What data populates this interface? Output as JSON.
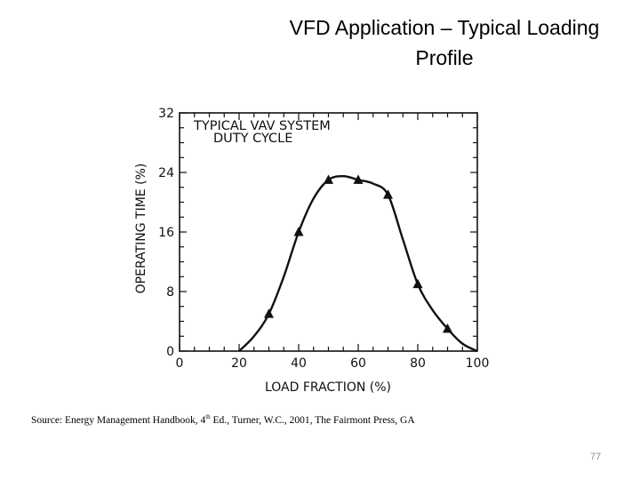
{
  "slide": {
    "title_line1": "VFD Application – Typical Loading",
    "title_line2": "Profile",
    "source_prefix": "Source:  Energy Management Handbook, 4",
    "source_sup": "th",
    "source_suffix": " Ed., Turner, W.C., 2001, The Fairmont  Press, GA",
    "page_number": "77"
  },
  "chart_data": {
    "type": "line",
    "title": "TYPICAL VAV SYSTEM",
    "subtitle": "DUTY CYCLE",
    "xlabel": "LOAD FRACTION (%)",
    "ylabel": "OPERATING TIME (%)",
    "xlim": [
      0,
      100
    ],
    "ylim": [
      0,
      32
    ],
    "xticks": [
      "0",
      "20",
      "40",
      "60",
      "80",
      "100"
    ],
    "yticks": [
      "0",
      "8",
      "16",
      "24",
      "32"
    ],
    "series": [
      {
        "points": [
          [
            30,
            5
          ],
          [
            40,
            16
          ],
          [
            50,
            23
          ],
          [
            60,
            23
          ],
          [
            70,
            21
          ],
          [
            80,
            9
          ],
          [
            90,
            3
          ]
        ],
        "curve": [
          [
            20,
            0
          ],
          [
            25,
            2
          ],
          [
            30,
            5
          ],
          [
            35,
            10
          ],
          [
            40,
            16
          ],
          [
            45,
            20.5
          ],
          [
            50,
            23
          ],
          [
            55,
            23.5
          ],
          [
            60,
            23
          ],
          [
            65,
            22.5
          ],
          [
            70,
            21
          ],
          [
            75,
            15
          ],
          [
            80,
            9
          ],
          [
            85,
            5.5
          ],
          [
            90,
            3
          ],
          [
            95,
            1
          ],
          [
            100,
            0
          ]
        ],
        "marker": "triangle",
        "color": "#111111"
      }
    ],
    "grid": false
  }
}
